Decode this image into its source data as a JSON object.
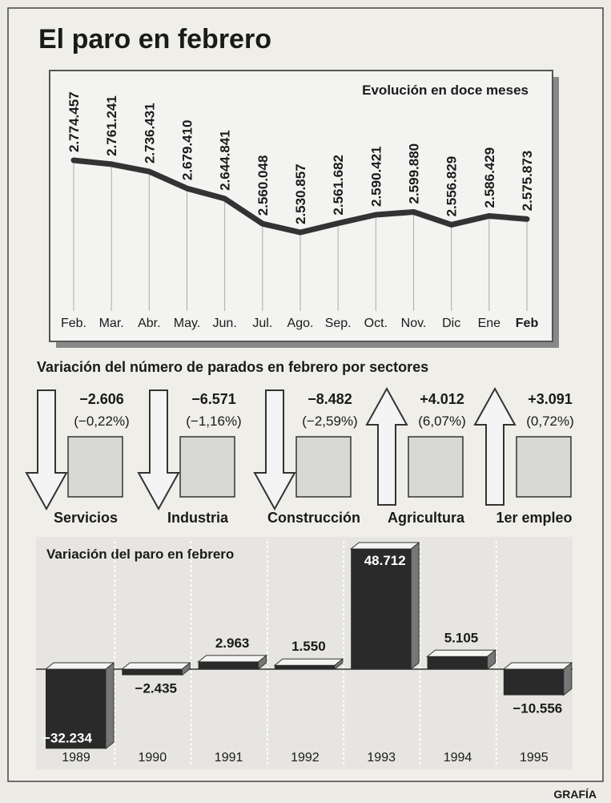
{
  "title": "El paro en febrero",
  "chart_data": [
    {
      "type": "line",
      "title": "Evolución en doce meses",
      "categories": [
        "Feb.",
        "Mar.",
        "Abr.",
        "May.",
        "Jun.",
        "Jul.",
        "Ago.",
        "Sep.",
        "Oct.",
        "Nov.",
        "Dic",
        "Ene",
        "Feb"
      ],
      "values": [
        2774457,
        2761241,
        2736431,
        2679410,
        2644841,
        2560048,
        2530857,
        2561682,
        2590421,
        2599880,
        2556829,
        2586429,
        2575873
      ],
      "value_labels": [
        "2.774.457",
        "2.761.241",
        "2.736.431",
        "2.679.410",
        "2.644.841",
        "2.560.048",
        "2.530.857",
        "2.561.682",
        "2.590.421",
        "2.599.880",
        "2.556.829",
        "2.586.429",
        "2.575.873"
      ],
      "color": "#333333"
    },
    {
      "type": "arrow",
      "title": "Variación del número de parados en febrero por sectores",
      "categories": [
        "Servicios",
        "Industria",
        "Construcción",
        "Agricultura",
        "1er empleo"
      ],
      "values": [
        -2606,
        -6571,
        -8482,
        4012,
        3091
      ],
      "value_labels": [
        "−2.606",
        "−6.571",
        "−8.482",
        "+4.012",
        "+3.091"
      ],
      "percents": [
        -0.22,
        -1.16,
        -2.59,
        6.07,
        0.72
      ],
      "percent_labels": [
        "(−0,22%)",
        "(−1,16%)",
        "(−2,59%)",
        "(6,07%)",
        "(0,72%)"
      ],
      "color": "#f4f4f4"
    },
    {
      "type": "bar",
      "title": "Variación del paro en febrero",
      "categories": [
        "1989",
        "1990",
        "1991",
        "1992",
        "1993",
        "1994",
        "1995"
      ],
      "values": [
        -32234,
        -2435,
        2963,
        1550,
        48712,
        5105,
        -10556
      ],
      "value_labels": [
        "−32.234",
        "−2.435",
        "2.963",
        "1.550",
        "48.712",
        "5.105",
        "−10.556"
      ],
      "color": "#2a2a2a"
    }
  ],
  "credit": "GRAFÍA"
}
